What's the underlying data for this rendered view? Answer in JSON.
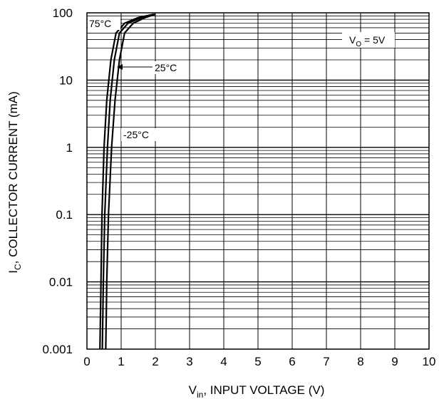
{
  "chart_data": {
    "type": "line",
    "x_scale": "linear",
    "y_scale": "log",
    "xlim": [
      0,
      10
    ],
    "ylim": [
      0.001,
      100
    ],
    "grid": true,
    "x_ticks": [
      "0",
      "1",
      "2",
      "3",
      "4",
      "5",
      "6",
      "7",
      "8",
      "9",
      "10"
    ],
    "y_ticks": [
      "0.001",
      "0.01",
      "0.1",
      "1",
      "10",
      "100"
    ],
    "xlabel": {
      "main": "V",
      "sub": "in",
      "rest": ", INPUT VOLTAGE (V)"
    },
    "ylabel": {
      "main": "I",
      "sub": "C",
      "rest": ", COLLECTOR CURRENT (mA)"
    },
    "condition": {
      "main": "V",
      "sub": "O",
      "rest": " = 5V"
    },
    "series": [
      {
        "name": "75°C",
        "x": [
          0.38,
          0.41,
          0.44,
          0.5,
          0.58,
          0.7,
          0.85,
          1.1,
          1.5,
          1.95
        ],
        "y": [
          0.001,
          0.01,
          0.1,
          1,
          5,
          20,
          50,
          70,
          85,
          95
        ]
      },
      {
        "name": "25°C",
        "x": [
          0.45,
          0.48,
          0.52,
          0.6,
          0.68,
          0.8,
          0.95,
          1.2,
          1.6,
          2.0
        ],
        "y": [
          0.001,
          0.01,
          0.1,
          1,
          5,
          20,
          50,
          70,
          85,
          95
        ]
      },
      {
        "name": "-25°C",
        "x": [
          0.55,
          0.58,
          0.63,
          0.72,
          0.82,
          0.95,
          1.1,
          1.35,
          1.7,
          2.0
        ],
        "y": [
          0.001,
          0.01,
          0.1,
          1,
          5,
          20,
          50,
          70,
          85,
          95
        ]
      }
    ]
  }
}
